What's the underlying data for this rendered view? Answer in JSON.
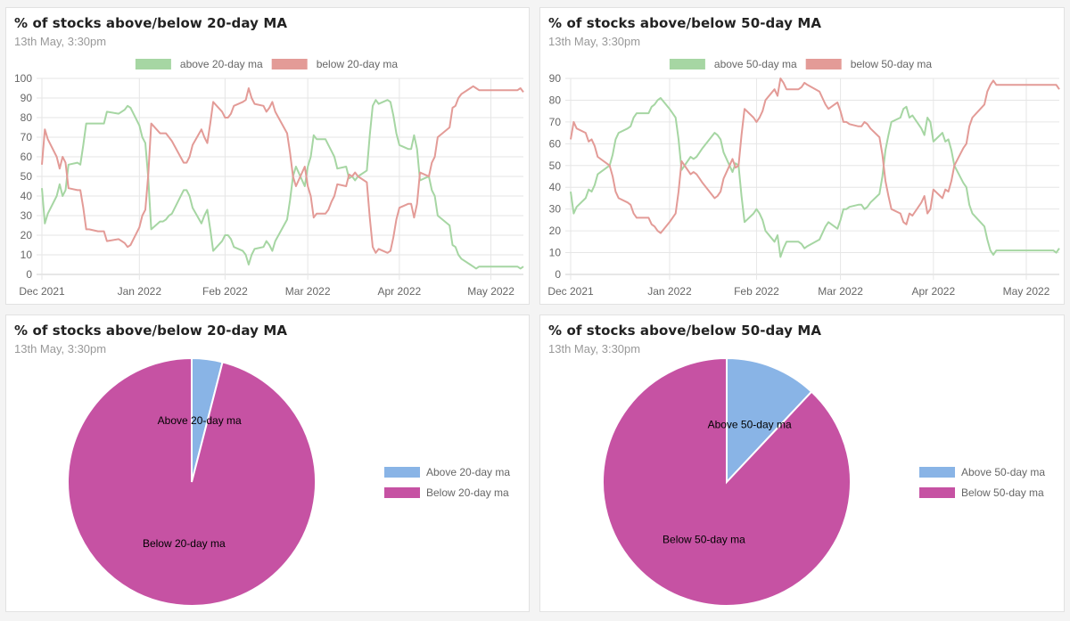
{
  "cards": [
    {
      "title": "% of stocks above/below 20-day MA",
      "subtitle": "13th May, 3:30pm"
    },
    {
      "title": "% of stocks above/below 50-day MA",
      "subtitle": "13th May, 3:30pm"
    },
    {
      "title": "% of stocks above/below 20-day MA",
      "subtitle": "13th May, 3:30pm"
    },
    {
      "title": "% of stocks above/below 50-day MA",
      "subtitle": "13th May, 3:30pm"
    }
  ],
  "colors": {
    "above_line": "#a6d6a3",
    "below_line": "#e39b97",
    "above_pie": "#89b4e6",
    "below_pie": "#c652a3"
  },
  "chart_data": [
    {
      "type": "line",
      "title": "% of stocks above/below 20-day MA",
      "x": [
        "2021-12-01",
        "2021-12-02",
        "2021-12-03",
        "2021-12-06",
        "2021-12-07",
        "2021-12-08",
        "2021-12-09",
        "2021-12-10",
        "2021-12-13",
        "2021-12-14",
        "2021-12-15",
        "2021-12-16",
        "2021-12-17",
        "2021-12-20",
        "2021-12-21",
        "2021-12-22",
        "2021-12-23",
        "2021-12-27",
        "2021-12-28",
        "2021-12-29",
        "2021-12-30",
        "2021-12-31",
        "2022-01-03",
        "2022-01-04",
        "2022-01-05",
        "2022-01-06",
        "2022-01-07",
        "2022-01-10",
        "2022-01-11",
        "2022-01-12",
        "2022-01-13",
        "2022-01-14",
        "2022-01-18",
        "2022-01-19",
        "2022-01-20",
        "2022-01-21",
        "2022-01-24",
        "2022-01-25",
        "2022-01-26",
        "2022-01-27",
        "2022-01-28",
        "2022-01-31",
        "2022-02-01",
        "2022-02-02",
        "2022-02-03",
        "2022-02-04",
        "2022-02-07",
        "2022-02-08",
        "2022-02-09",
        "2022-02-10",
        "2022-02-11",
        "2022-02-14",
        "2022-02-15",
        "2022-02-16",
        "2022-02-17",
        "2022-02-18",
        "2022-02-22",
        "2022-02-23",
        "2022-02-24",
        "2022-02-25",
        "2022-02-28",
        "2022-03-01",
        "2022-03-02",
        "2022-03-03",
        "2022-03-04",
        "2022-03-07",
        "2022-03-08",
        "2022-03-09",
        "2022-03-10",
        "2022-03-11",
        "2022-03-14",
        "2022-03-15",
        "2022-03-16",
        "2022-03-17",
        "2022-03-18",
        "2022-03-21",
        "2022-03-22",
        "2022-03-23",
        "2022-03-24",
        "2022-03-25",
        "2022-03-28",
        "2022-03-29",
        "2022-03-30",
        "2022-03-31",
        "2022-04-01",
        "2022-04-04",
        "2022-04-05",
        "2022-04-06",
        "2022-04-07",
        "2022-04-08",
        "2022-04-11",
        "2022-04-12",
        "2022-04-13",
        "2022-04-14",
        "2022-04-18",
        "2022-04-19",
        "2022-04-20",
        "2022-04-21",
        "2022-04-22",
        "2022-04-25",
        "2022-04-26",
        "2022-04-27",
        "2022-04-28",
        "2022-04-29",
        "2022-05-02",
        "2022-05-03",
        "2022-05-04",
        "2022-05-05",
        "2022-05-06",
        "2022-05-09",
        "2022-05-10",
        "2022-05-11",
        "2022-05-12",
        "2022-05-13"
      ],
      "series": [
        {
          "name": "above 20-day ma",
          "values": [
            44,
            26,
            31,
            40,
            46,
            40,
            43,
            56,
            57,
            56,
            66,
            77,
            77,
            77,
            77,
            77,
            83,
            82,
            83,
            84,
            86,
            85,
            76,
            70,
            67,
            49,
            23,
            27,
            27,
            28,
            30,
            31,
            43,
            43,
            40,
            34,
            26,
            30,
            33,
            23,
            12,
            17,
            20,
            20,
            18,
            14,
            12,
            10,
            5,
            10,
            13,
            14,
            17,
            15,
            12,
            17,
            28,
            38,
            50,
            55,
            45,
            55,
            60,
            71,
            69,
            69,
            66,
            63,
            60,
            54,
            55,
            49,
            50,
            48,
            50,
            53,
            71,
            86,
            89,
            87,
            89,
            88,
            81,
            72,
            66,
            64,
            64,
            71,
            64,
            48,
            50,
            43,
            40,
            30,
            25,
            15,
            14,
            10,
            8,
            5,
            4,
            3,
            4,
            4,
            4,
            4,
            4,
            4,
            4,
            4,
            4,
            4,
            3,
            4
          ]
        },
        {
          "name": "below 20-day ma",
          "values": [
            56,
            74,
            69,
            60,
            54,
            60,
            57,
            44,
            43,
            43,
            34,
            23,
            23,
            22,
            22,
            22,
            17,
            18,
            17,
            16,
            14,
            15,
            24,
            30,
            33,
            51,
            77,
            72,
            72,
            72,
            70,
            68,
            57,
            57,
            60,
            66,
            74,
            70,
            67,
            77,
            88,
            83,
            80,
            80,
            82,
            86,
            88,
            89,
            95,
            90,
            87,
            86,
            83,
            85,
            88,
            83,
            72,
            62,
            50,
            45,
            55,
            45,
            40,
            29,
            31,
            31,
            33,
            37,
            40,
            46,
            45,
            51,
            50,
            52,
            50,
            47,
            29,
            14,
            11,
            13,
            11,
            12,
            19,
            28,
            34,
            36,
            36,
            29,
            36,
            52,
            50,
            57,
            60,
            70,
            75,
            85,
            86,
            90,
            92,
            95,
            96,
            95,
            94,
            94,
            94,
            94,
            94,
            94,
            94,
            94,
            94,
            94,
            95,
            93
          ]
        }
      ],
      "ylim": [
        0,
        100
      ],
      "yticks": [
        0,
        10,
        20,
        30,
        40,
        50,
        60,
        70,
        80,
        90,
        100
      ],
      "xticks": [
        {
          "label": "Dec 2021",
          "x": "2021-12-01"
        },
        {
          "label": "Jan 2022",
          "x": "2022-01-03"
        },
        {
          "label": "Feb 2022",
          "x": "2022-02-01"
        },
        {
          "label": "Mar 2022",
          "x": "2022-03-01"
        },
        {
          "label": "Apr 2022",
          "x": "2022-04-01"
        },
        {
          "label": "May 2022",
          "x": "2022-05-02"
        }
      ],
      "grid": true,
      "legend": "top"
    },
    {
      "type": "line",
      "title": "% of stocks above/below 50-day MA",
      "x": [
        "2021-12-01",
        "2021-12-02",
        "2021-12-03",
        "2021-12-06",
        "2021-12-07",
        "2021-12-08",
        "2021-12-09",
        "2021-12-10",
        "2021-12-13",
        "2021-12-14",
        "2021-12-15",
        "2021-12-16",
        "2021-12-17",
        "2021-12-20",
        "2021-12-21",
        "2021-12-22",
        "2021-12-23",
        "2021-12-27",
        "2021-12-28",
        "2021-12-29",
        "2021-12-30",
        "2021-12-31",
        "2022-01-03",
        "2022-01-04",
        "2022-01-05",
        "2022-01-06",
        "2022-01-07",
        "2022-01-10",
        "2022-01-11",
        "2022-01-12",
        "2022-01-13",
        "2022-01-14",
        "2022-01-18",
        "2022-01-19",
        "2022-01-20",
        "2022-01-21",
        "2022-01-24",
        "2022-01-25",
        "2022-01-26",
        "2022-01-27",
        "2022-01-28",
        "2022-01-31",
        "2022-02-01",
        "2022-02-02",
        "2022-02-03",
        "2022-02-04",
        "2022-02-07",
        "2022-02-08",
        "2022-02-09",
        "2022-02-10",
        "2022-02-11",
        "2022-02-14",
        "2022-02-15",
        "2022-02-16",
        "2022-02-17",
        "2022-02-18",
        "2022-02-22",
        "2022-02-23",
        "2022-02-24",
        "2022-02-25",
        "2022-02-28",
        "2022-03-01",
        "2022-03-02",
        "2022-03-03",
        "2022-03-04",
        "2022-03-07",
        "2022-03-08",
        "2022-03-09",
        "2022-03-10",
        "2022-03-11",
        "2022-03-14",
        "2022-03-15",
        "2022-03-16",
        "2022-03-17",
        "2022-03-18",
        "2022-03-21",
        "2022-03-22",
        "2022-03-23",
        "2022-03-24",
        "2022-03-25",
        "2022-03-28",
        "2022-03-29",
        "2022-03-30",
        "2022-03-31",
        "2022-04-01",
        "2022-04-04",
        "2022-04-05",
        "2022-04-06",
        "2022-04-07",
        "2022-04-08",
        "2022-04-11",
        "2022-04-12",
        "2022-04-13",
        "2022-04-14",
        "2022-04-18",
        "2022-04-19",
        "2022-04-20",
        "2022-04-21",
        "2022-04-22",
        "2022-04-25",
        "2022-04-26",
        "2022-04-27",
        "2022-04-28",
        "2022-04-29",
        "2022-05-02",
        "2022-05-03",
        "2022-05-04",
        "2022-05-05",
        "2022-05-06",
        "2022-05-09",
        "2022-05-10",
        "2022-05-11",
        "2022-05-12",
        "2022-05-13"
      ],
      "series": [
        {
          "name": "above 50-day ma",
          "values": [
            38,
            28,
            31,
            35,
            39,
            38,
            41,
            46,
            49,
            50,
            55,
            62,
            65,
            67,
            68,
            72,
            74,
            74,
            77,
            78,
            80,
            81,
            76,
            74,
            72,
            62,
            48,
            54,
            53,
            54,
            56,
            58,
            65,
            64,
            62,
            56,
            47,
            51,
            50,
            36,
            24,
            28,
            30,
            28,
            25,
            20,
            15,
            18,
            8,
            12,
            15,
            15,
            15,
            14,
            12,
            13,
            16,
            19,
            22,
            24,
            21,
            25,
            30,
            30,
            31,
            32,
            32,
            30,
            31,
            33,
            37,
            45,
            57,
            64,
            70,
            72,
            76,
            77,
            72,
            73,
            67,
            64,
            72,
            70,
            61,
            65,
            61,
            62,
            57,
            50,
            42,
            40,
            32,
            28,
            22,
            16,
            11,
            9,
            11,
            11,
            11,
            11,
            11,
            11,
            11,
            11,
            11,
            11,
            11,
            11,
            11,
            11,
            10,
            12
          ]
        },
        {
          "name": "below 50-day ma",
          "values": [
            62,
            70,
            67,
            65,
            61,
            62,
            59,
            54,
            51,
            50,
            45,
            38,
            35,
            33,
            32,
            28,
            26,
            26,
            23,
            22,
            20,
            19,
            24,
            26,
            28,
            38,
            52,
            46,
            47,
            46,
            44,
            42,
            35,
            36,
            38,
            44,
            53,
            49,
            50,
            64,
            76,
            72,
            70,
            72,
            75,
            80,
            85,
            82,
            90,
            88,
            85,
            85,
            85,
            86,
            88,
            87,
            84,
            81,
            78,
            76,
            79,
            75,
            70,
            70,
            69,
            68,
            68,
            70,
            69,
            67,
            63,
            55,
            43,
            36,
            30,
            28,
            24,
            23,
            28,
            27,
            33,
            36,
            28,
            30,
            39,
            35,
            39,
            38,
            43,
            50,
            58,
            60,
            68,
            72,
            78,
            84,
            87,
            89,
            87,
            87,
            87,
            87,
            87,
            87,
            87,
            87,
            87,
            87,
            87,
            87,
            87,
            87,
            87,
            85
          ]
        }
      ],
      "ylim": [
        0,
        90
      ],
      "yticks": [
        0,
        10,
        20,
        30,
        40,
        50,
        60,
        70,
        80,
        90
      ],
      "xticks": [
        {
          "label": "Dec 2021",
          "x": "2021-12-01"
        },
        {
          "label": "Jan 2022",
          "x": "2022-01-03"
        },
        {
          "label": "Feb 2022",
          "x": "2022-02-01"
        },
        {
          "label": "Mar 2022",
          "x": "2022-03-01"
        },
        {
          "label": "Apr 2022",
          "x": "2022-04-01"
        },
        {
          "label": "May 2022",
          "x": "2022-05-02"
        }
      ],
      "grid": true,
      "legend": "top"
    },
    {
      "type": "pie",
      "title": "% of stocks above/below 20-day MA",
      "labels": [
        "Above 20-day ma",
        "Below 20-day ma"
      ],
      "values": [
        4,
        96
      ],
      "legend": "right"
    },
    {
      "type": "pie",
      "title": "% of stocks above/below 50-day MA",
      "labels": [
        "Above 50-day ma",
        "Below 50-day ma"
      ],
      "values": [
        12,
        88
      ],
      "legend": "right"
    }
  ]
}
